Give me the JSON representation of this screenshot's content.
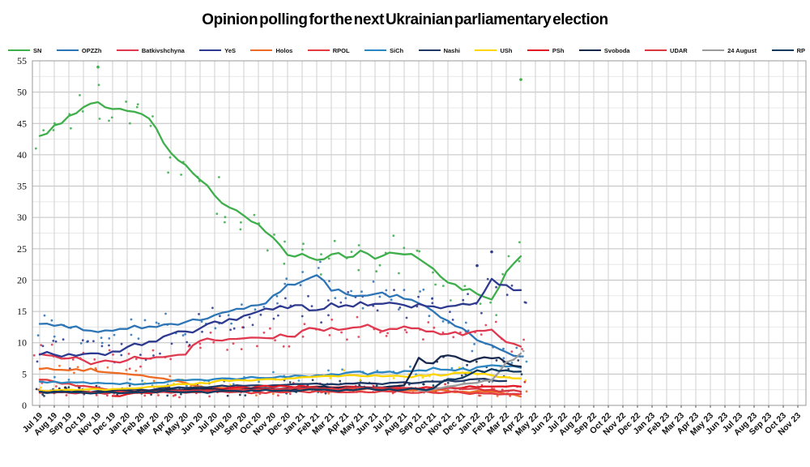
{
  "title": "Opinion polling for the next Ukrainian parliamentary election",
  "chart_data": {
    "type": "line",
    "title": "Opinion polling for the next Ukrainian parliamentary election",
    "xlabel": "",
    "ylabel": "",
    "ylim": [
      0,
      55
    ],
    "y_step": 5,
    "y_minor_step": 2.5,
    "grid": true,
    "legend_position": "top",
    "x_labels": [
      "Jul 19",
      "Aug 19",
      "Sep 19",
      "Oct 19",
      "Nov 19",
      "Dec 19",
      "Jan 20",
      "Feb 20",
      "Mar 20",
      "Apr 20",
      "May 20",
      "Jun 20",
      "Jul 20",
      "Aug 20",
      "Sep 20",
      "Oct 20",
      "Nov 20",
      "Dec 20",
      "Jan 21",
      "Feb 21",
      "Mar 21",
      "Apr 21",
      "May 21",
      "Jun 21",
      "Jul 21",
      "Aug 21",
      "Sep 21",
      "Oct 21",
      "Nov 21",
      "Dec 21",
      "Jan 22",
      "Feb 22",
      "Mar 22",
      "Apr 22",
      "May 22",
      "Jun 22",
      "Jul 22",
      "Aug 22",
      "Sep 22",
      "Oct 22",
      "Nov 22",
      "Dec 22",
      "Jan 23",
      "Feb 23",
      "Mar 23",
      "Apr 23",
      "May 23",
      "Jun 23",
      "Jul 23",
      "Aug 23",
      "Sep 23",
      "Oct 23",
      "Nov 23"
    ],
    "series": [
      {
        "name": "SN",
        "color": "#3faf4c",
        "dots": 2,
        "amp": 3.2,
        "values": [
          43,
          44.7,
          46.2,
          47.6,
          48.4,
          47.3,
          47,
          46.5,
          44.2,
          40.3,
          38.4,
          36,
          33.5,
          31.6,
          30.3,
          28.9,
          26.8,
          24,
          24.2,
          23.2,
          24.1,
          23.6,
          24.7,
          23.4,
          24.4,
          24.1,
          23.4,
          21.8,
          19.6,
          18.4,
          17.8,
          16.9,
          21.3,
          23.8
        ]
      },
      {
        "name": "OPZZh",
        "color": "#2e75b6",
        "dots": 2,
        "amp": 2.2,
        "values": [
          13,
          12.7,
          12.4,
          12,
          11.7,
          11.9,
          12.2,
          12.3,
          12.5,
          13,
          13.3,
          13.6,
          14.4,
          15,
          15.4,
          16,
          17.5,
          19.3,
          19.8,
          20.8,
          18.3,
          17.8,
          17.5,
          17.8,
          17.3,
          17,
          16.3,
          15,
          13.5,
          12.3,
          10.4,
          9.6,
          8.5,
          7.8
        ]
      },
      {
        "name": "Batkivshchyna",
        "color": "#e0394f",
        "dots": 2,
        "amp": 1.8,
        "values": [
          8.2,
          7.9,
          7.5,
          7.2,
          6.9,
          7,
          7.2,
          7.5,
          7.7,
          7.9,
          8.1,
          10.3,
          10.4,
          10.6,
          10.7,
          10.8,
          10.7,
          11,
          11.9,
          12.2,
          12.4,
          12.2,
          12.5,
          12.3,
          12.2,
          12.6,
          12.3,
          11.8,
          11.4,
          11.2,
          11.9,
          12.1,
          10.1,
          9.4
        ]
      },
      {
        "name": "YeS",
        "color": "#2d3a8f",
        "dots": 2,
        "amp": 2.4,
        "values": [
          8.1,
          8.1,
          8.2,
          8.2,
          8.3,
          8.6,
          9.3,
          9.6,
          10.2,
          11.4,
          11.8,
          12.3,
          13.4,
          13.8,
          14.3,
          15,
          15.3,
          15.5,
          16,
          15.2,
          16.3,
          16,
          16.5,
          16.2,
          16.4,
          16,
          16.2,
          15.8,
          15.8,
          16.2,
          16.4,
          20.2,
          19.2,
          18.4
        ]
      },
      {
        "name": "Holos",
        "color": "#ed6b24",
        "dots": 1,
        "amp": 0.9,
        "values": [
          5.8,
          5.7,
          5.6,
          5.5,
          5.4,
          5.2,
          5,
          4.8,
          4.4,
          4,
          3.6,
          3,
          2.8,
          2.7,
          2.6,
          2.5,
          2.5,
          2.4,
          2.5,
          2.6,
          2.7,
          2.6,
          2.5,
          2.6,
          2.5,
          2.4,
          2.4,
          2.3,
          2.3,
          2.2,
          2.3,
          2.2,
          1.8,
          1.4
        ]
      },
      {
        "name": "RPOL",
        "color": "#e23b41",
        "dots": 1,
        "amp": 0.8,
        "values": [
          4.1,
          3.8,
          3.5,
          3.1,
          2.8,
          2.4,
          2.2,
          2.1,
          2.1,
          2,
          2,
          2.1,
          2.2,
          2.1,
          2.2,
          2.1,
          2.2,
          2.1,
          2.2,
          2.3,
          2.2,
          2.1,
          2.2,
          2.1,
          2.2,
          2.1,
          2,
          2,
          2.1,
          2,
          2,
          1.9,
          1.8,
          1.8
        ]
      },
      {
        "name": "SiCh",
        "color": "#2e86c1",
        "dots": 1,
        "amp": 1.0,
        "values": [
          3.8,
          3.8,
          3.7,
          3.7,
          3.6,
          3.5,
          3.6,
          3.4,
          3.6,
          3.9,
          4,
          4.1,
          4.2,
          4.3,
          4.3,
          4.4,
          4.4,
          4.5,
          4.7,
          4.8,
          5,
          5.2,
          5.4,
          5.3,
          5.4,
          5.5,
          5.6,
          6,
          5.7,
          5.9,
          6.1,
          6.4,
          6.2,
          6
        ]
      },
      {
        "name": "Nashi",
        "color": "#1f3864",
        "dots": 1,
        "amp": 0.9,
        "values": [
          2.1,
          2.1,
          2.2,
          2.2,
          2.3,
          2.3,
          2.4,
          2.5,
          2.6,
          2.7,
          2.8,
          2.9,
          3,
          3,
          3.1,
          3.2,
          3.2,
          3.3,
          3.4,
          3.5,
          3.4,
          3.5,
          3.6,
          3.5,
          3.6,
          3.7,
          3.6,
          3.8,
          4,
          3.9,
          4.2,
          4,
          3.9,
          null
        ]
      },
      {
        "name": "USh",
        "color": "#ffd500",
        "dots": 1,
        "amp": 0.9,
        "values": [
          2.4,
          2.4,
          2.5,
          2.5,
          2.6,
          2.6,
          2.7,
          2.8,
          3,
          3.2,
          3.4,
          3.6,
          3.8,
          3.9,
          4,
          4.1,
          4.2,
          4.3,
          4.5,
          4.6,
          4.7,
          4.8,
          4.7,
          4.8,
          4.7,
          4.6,
          4.8,
          5,
          4.9,
          5.2,
          5,
          4.8,
          4.5,
          4.3
        ]
      },
      {
        "name": "PSh",
        "color": "#e01b24",
        "dots": 1,
        "amp": 0.8,
        "values": [
          null,
          null,
          null,
          null,
          null,
          1.5,
          1.8,
          2,
          2.2,
          2.4,
          2.5,
          2.6,
          2.7,
          2.8,
          2.9,
          3,
          2.9,
          3,
          3.1,
          3,
          2.9,
          3,
          2.9,
          2.8,
          2.9,
          2.8,
          2.7,
          2.8,
          2.9,
          2.8,
          2.9,
          3,
          3,
          3
        ]
      },
      {
        "name": "Svoboda",
        "color": "#16294d",
        "dots": 1,
        "amp": 1.0,
        "values": [
          2.2,
          2.2,
          2.1,
          2.2,
          2.2,
          2.3,
          2.3,
          2.4,
          2.4,
          2.5,
          2.5,
          2.6,
          2.6,
          2.5,
          2.6,
          2.7,
          2.6,
          2.7,
          2.8,
          2.9,
          2.8,
          2.9,
          3,
          2.9,
          3,
          3.2,
          7.6,
          6.7,
          8,
          7.3,
          7.4,
          7.5,
          6.8,
          6.2
        ]
      },
      {
        "name": "UDAR",
        "color": "#d93840",
        "dots": 1,
        "amp": 0.8,
        "values": [
          2,
          2,
          2,
          2.1,
          2,
          2.1,
          2.1,
          2.2,
          2.2,
          2.3,
          2.3,
          2.4,
          2.4,
          2.5,
          2.5,
          2.6,
          2.5,
          2.6,
          2.7,
          2.8,
          2.7,
          2.8,
          2.9,
          2.8,
          2.7,
          2.8,
          2.6,
          2.7,
          2.8,
          2.6,
          2.7,
          2.5,
          2.3,
          2.2
        ]
      },
      {
        "name": "24 August",
        "color": "#9b9b9b",
        "dots": 1,
        "amp": 0.8,
        "values": [
          null,
          null,
          null,
          null,
          null,
          null,
          null,
          null,
          null,
          null,
          null,
          null,
          null,
          null,
          null,
          null,
          null,
          null,
          null,
          null,
          null,
          null,
          null,
          null,
          null,
          null,
          2.4,
          2.6,
          3,
          3.4,
          3.6,
          4,
          6.9,
          8.3
        ]
      },
      {
        "name": "RP",
        "color": "#0f3a5f",
        "dots": 1,
        "amp": 0.8,
        "values": [
          2.2,
          2.1,
          2.1,
          2,
          2,
          2.1,
          2,
          2.1,
          2.1,
          2.2,
          2.1,
          2.2,
          2.2,
          2.3,
          2.2,
          2.3,
          2.3,
          2.4,
          2.4,
          2.5,
          2.4,
          2.5,
          2.6,
          2.5,
          2.6,
          2.5,
          2.6,
          2.7,
          4.2,
          4.4,
          5.6,
          5.8,
          5.6,
          5.4
        ]
      }
    ],
    "outliers": [
      {
        "series": "SN",
        "month": "Nov 19",
        "value": 54
      },
      {
        "series": "SN",
        "month": "Apr 22",
        "value": 52
      },
      {
        "series": "YeS",
        "month": "Feb 22",
        "value": 24.5
      },
      {
        "series": "YeS",
        "month": "Jan 22",
        "value": 22.3
      }
    ]
  },
  "colors": {
    "grid_vertical": "#cfcfcf",
    "grid_major": "#c0c0c0",
    "grid_minor": "#e8e8e8",
    "plot_border": "#999999",
    "tick": "#555555"
  }
}
